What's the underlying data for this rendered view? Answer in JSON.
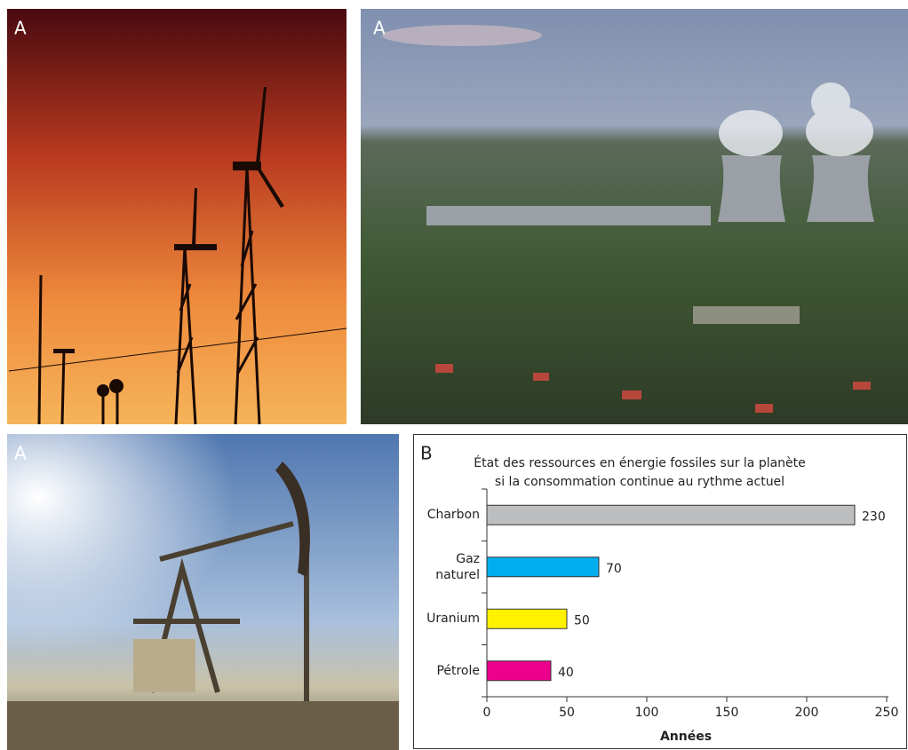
{
  "panel_labels": [
    "A",
    "A",
    "A",
    "B"
  ],
  "chart_data": {
    "type": "bar",
    "orientation": "horizontal",
    "title": [
      "État des ressources en énergie fossiles sur la planète",
      "si la consommation continue au rythme actuel"
    ],
    "categories": [
      "Charbon",
      "Gaz naturel",
      "Uranium",
      "Pétrole"
    ],
    "values": [
      230,
      70,
      50,
      40
    ],
    "colors": [
      "#bdbec0",
      "#00aeef",
      "#fff200",
      "#ec008c"
    ],
    "xlim": [
      0,
      250
    ],
    "xticks": [
      0,
      50,
      100,
      150,
      200,
      250
    ],
    "xlabel": "Années"
  }
}
